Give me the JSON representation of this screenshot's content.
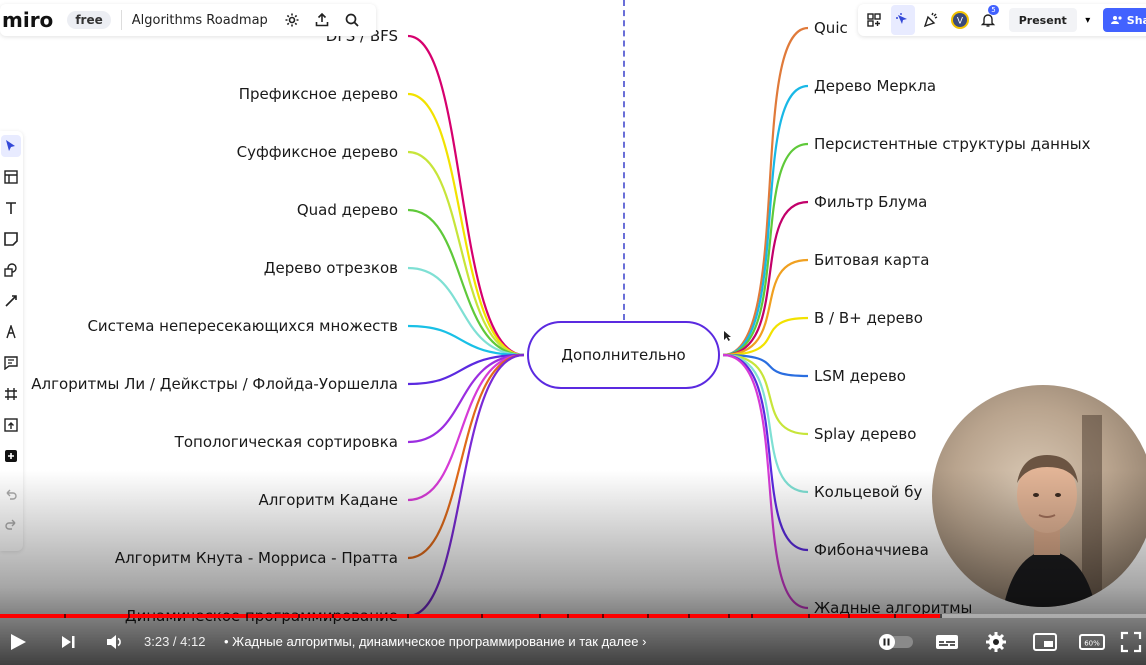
{
  "app": {
    "logo": "miro",
    "plan_badge": "free",
    "board_title": "Algorithms Roadmap"
  },
  "toolbar_top_left": {
    "icons": [
      "settings-icon",
      "upload-icon",
      "search-icon"
    ]
  },
  "toolbar_top_right": {
    "icons": [
      "reactions-icon",
      "select-cursor-icon",
      "celebrate-icon",
      "avatar-icon",
      "bell-icon"
    ],
    "notification_count": "5",
    "avatar_letter": "V",
    "present_label": "Present",
    "share_label": "Sha"
  },
  "left_toolbar": {
    "icons": [
      "pointer-icon",
      "template-icon",
      "text-icon",
      "sticky-note-icon",
      "shapes-icon",
      "line-icon",
      "pen-icon",
      "comment-icon",
      "frame-icon",
      "upload-icon",
      "add-icon",
      "undo-icon",
      "redo-icon"
    ]
  },
  "mindmap": {
    "center": "Дополнительно",
    "left_nodes": [
      {
        "label": "DFS / BFS",
        "color": "#d6006e"
      },
      {
        "label": "Префиксное дерево",
        "color": "#f2e200"
      },
      {
        "label": "Суффиксное дерево",
        "color": "#c7e53a"
      },
      {
        "label": "Quad дерево",
        "color": "#5fc93a"
      },
      {
        "label": "Дерево отрезков",
        "color": "#7fe0d4"
      },
      {
        "label": "Система непересекающихся множеств",
        "color": "#19c0e6"
      },
      {
        "label": "Алгоритмы Ли / Дейкстры / Флойда-Уоршелла",
        "color": "#5b2ae0"
      },
      {
        "label": "Топологическая сортировка",
        "color": "#9b2ee0"
      },
      {
        "label": "Алгоритм Кадане",
        "color": "#d63bd6"
      },
      {
        "label": "Алгоритм Кнута - Морриса - Пратта",
        "color": "#e06a1a"
      },
      {
        "label": "Динамическое программирование",
        "color": "#7a2ad6"
      }
    ],
    "right_nodes": [
      {
        "label": "Quic",
        "color": "#e07a3a"
      },
      {
        "label": "Дерево Меркла",
        "color": "#19b8e6"
      },
      {
        "label": "Персистентные структуры данных",
        "color": "#5fc93a"
      },
      {
        "label": "Фильтр Блума",
        "color": "#c2006a"
      },
      {
        "label": "Битовая карта",
        "color": "#f0a020"
      },
      {
        "label": "B / B+ дерево",
        "color": "#f2e200"
      },
      {
        "label": "LSM дерево",
        "color": "#2a6ee0"
      },
      {
        "label": "Splay дерево",
        "color": "#c7e53a"
      },
      {
        "label": "Кольцевой бу",
        "color": "#7fe0d4"
      },
      {
        "label": "Фибоначчиева",
        "color": "#5b2ae0"
      },
      {
        "label": "Жадные алгоритмы",
        "color": "#d63bd6"
      }
    ]
  },
  "player": {
    "time": "3:23 / 4:12",
    "chapter": "•  Жадные алгоритмы, динамическое программирование и так далее",
    "progress_fraction": 0.82,
    "chapter_marks": [
      0.056,
      0.112,
      0.215,
      0.26,
      0.29,
      0.355,
      0.42,
      0.47,
      0.495,
      0.525,
      0.565,
      0.6,
      0.635,
      0.655,
      0.705,
      0.74,
      0.78,
      0.82
    ],
    "icons": [
      "play-icon",
      "next-icon",
      "volume-icon",
      "autoplay-toggle-icon",
      "subtitles-icon",
      "settings-icon",
      "miniplayer-icon",
      "theater-icon",
      "fullscreen-icon"
    ],
    "theater_label": "60%",
    "accent_color": "#ff0000"
  }
}
